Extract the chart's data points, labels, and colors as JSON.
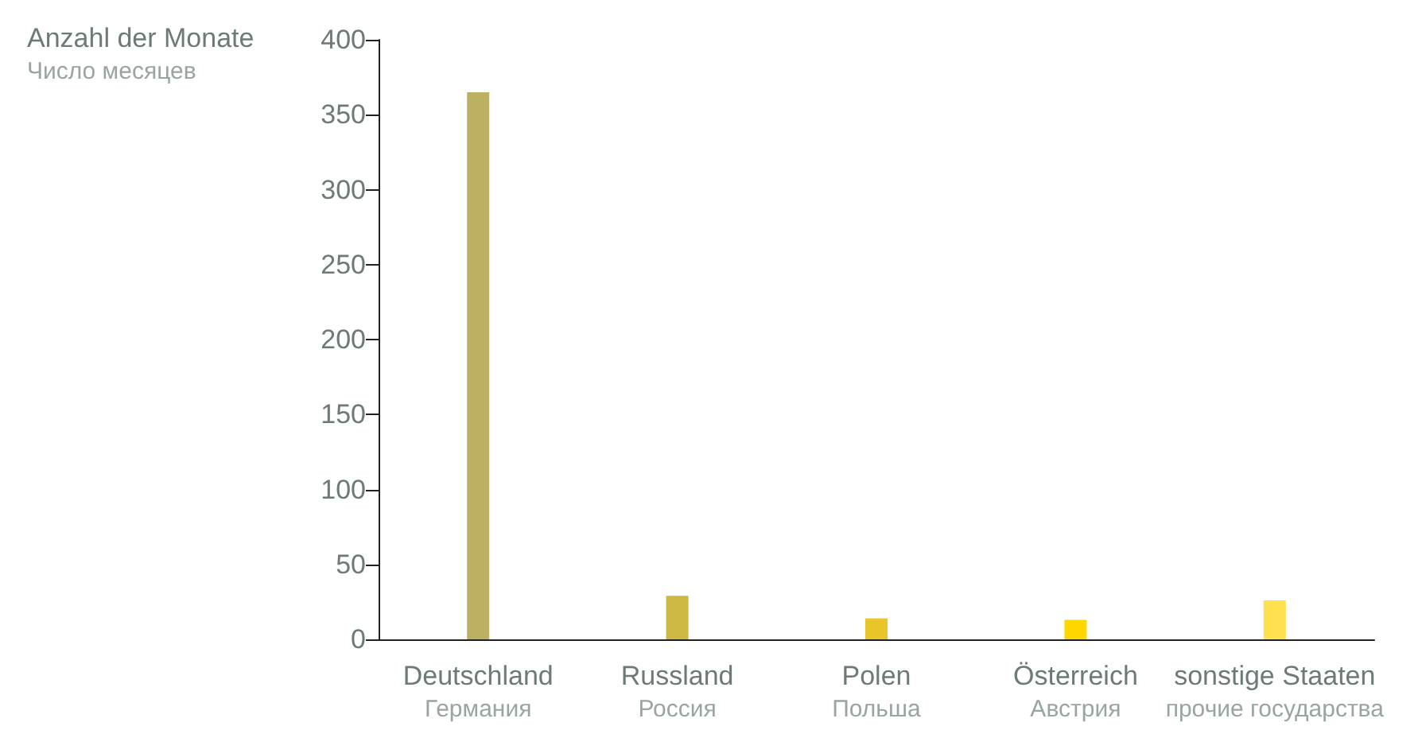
{
  "chart_data": {
    "type": "bar",
    "ylabel": "Anzahl der Monate\nЧисло месяцев",
    "categories": [
      "Deutschland\nГермания",
      "Russland\nРоссия",
      "Polen\nПольша",
      "Österreich\nАвстрия",
      "sonstige Staaten\nпрочие государства"
    ],
    "values": [
      365,
      29,
      14,
      13,
      26
    ],
    "colors": [
      "#bcb063",
      "#cdb843",
      "#e8c62a",
      "#fed700",
      "#ffe04f"
    ],
    "ylim": [
      0,
      400
    ],
    "yticks": [
      0,
      50,
      100,
      150,
      200,
      250,
      300,
      350,
      400
    ],
    "grid": false
  }
}
